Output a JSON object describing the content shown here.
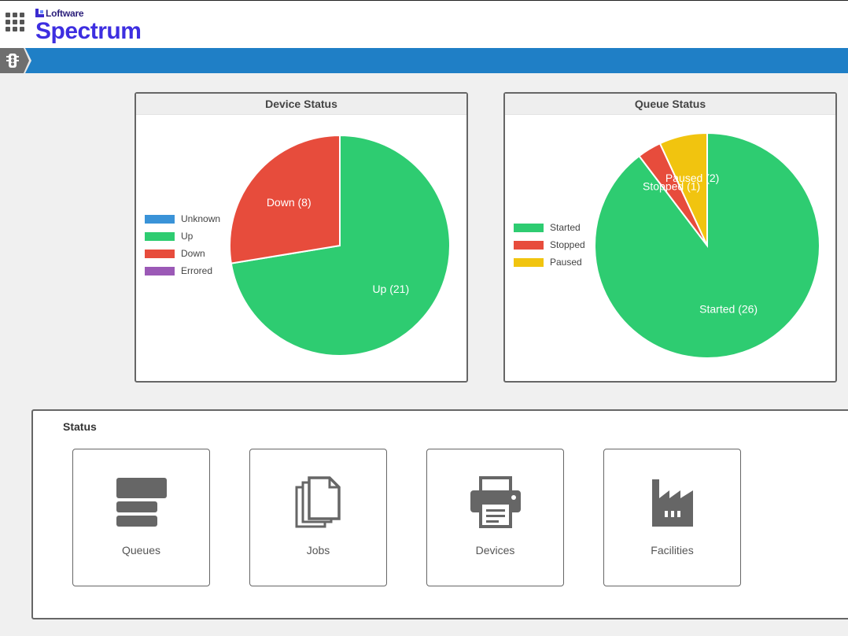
{
  "header": {
    "brand_small": "Loftware",
    "brand_name": "Spectrum"
  },
  "nav": {
    "tab_icon": "traffic-light-icon"
  },
  "device_status": {
    "title": "Device Status",
    "legend": [
      {
        "label": "Unknown",
        "color": "#3a93d8"
      },
      {
        "label": "Up",
        "color": "#2ecc71"
      },
      {
        "label": "Down",
        "color": "#e74c3c"
      },
      {
        "label": "Errored",
        "color": "#9b59b6"
      }
    ]
  },
  "queue_status": {
    "title": "Queue Status",
    "legend": [
      {
        "label": "Started",
        "color": "#2ecc71"
      },
      {
        "label": "Stopped",
        "color": "#e74c3c"
      },
      {
        "label": "Paused",
        "color": "#f1c40f"
      }
    ]
  },
  "chart_data": [
    {
      "type": "pie",
      "title": "Device Status",
      "categories": [
        "Unknown",
        "Up",
        "Down",
        "Errored"
      ],
      "values": [
        0,
        21,
        8,
        0
      ],
      "colors": [
        "#3a93d8",
        "#2ecc71",
        "#e74c3c",
        "#9b59b6"
      ],
      "data_labels": [
        "",
        "Up (21)",
        "Down (8)",
        ""
      ],
      "legend": "left"
    },
    {
      "type": "pie",
      "title": "Queue Status",
      "categories": [
        "Started",
        "Stopped",
        "Paused"
      ],
      "values": [
        26,
        1,
        2
      ],
      "colors": [
        "#2ecc71",
        "#e74c3c",
        "#f1c40f"
      ],
      "data_labels": [
        "Started (26)",
        "Stopped (1)",
        "Paused (2)"
      ],
      "legend": "left"
    }
  ],
  "status": {
    "title": "Status",
    "tiles": [
      {
        "label": "Queues",
        "icon": "queues-icon"
      },
      {
        "label": "Jobs",
        "icon": "jobs-icon"
      },
      {
        "label": "Devices",
        "icon": "printer-icon"
      },
      {
        "label": "Facilities",
        "icon": "factory-icon"
      }
    ]
  }
}
